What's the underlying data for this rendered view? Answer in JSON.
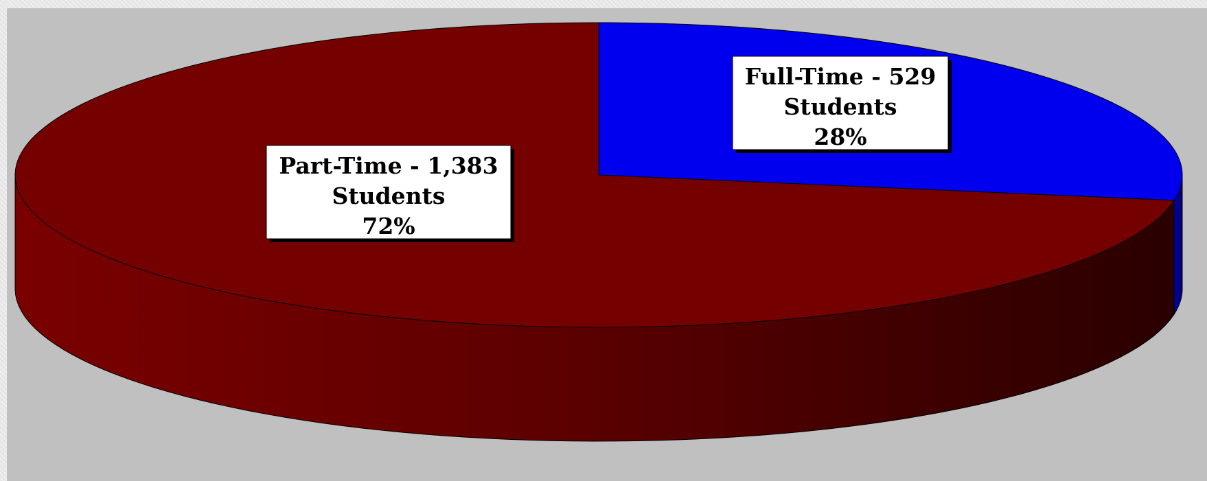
{
  "chart_data": {
    "type": "pie",
    "title": "",
    "slices": [
      {
        "name": "Full-Time",
        "value": 529,
        "percent": 28,
        "color": "#0000ee",
        "side_color": "#00009a",
        "label_lines": [
          "Full-Time - 529",
          "Students",
          "28%"
        ]
      },
      {
        "name": "Part-Time",
        "value": 1383,
        "percent": 72,
        "color": "#750000",
        "side_color": "#5a0000",
        "label_lines": [
          "Part-Time - 1,383",
          "Students",
          "72%"
        ]
      }
    ],
    "start_angle_deg": 90,
    "direction": "clockwise",
    "style": "3d",
    "legend": "none"
  },
  "colors": {
    "plot_background": "#c0c0c0",
    "page_background": "#eeeeee",
    "label_background": "#ffffff",
    "label_shadow": "#000000"
  }
}
